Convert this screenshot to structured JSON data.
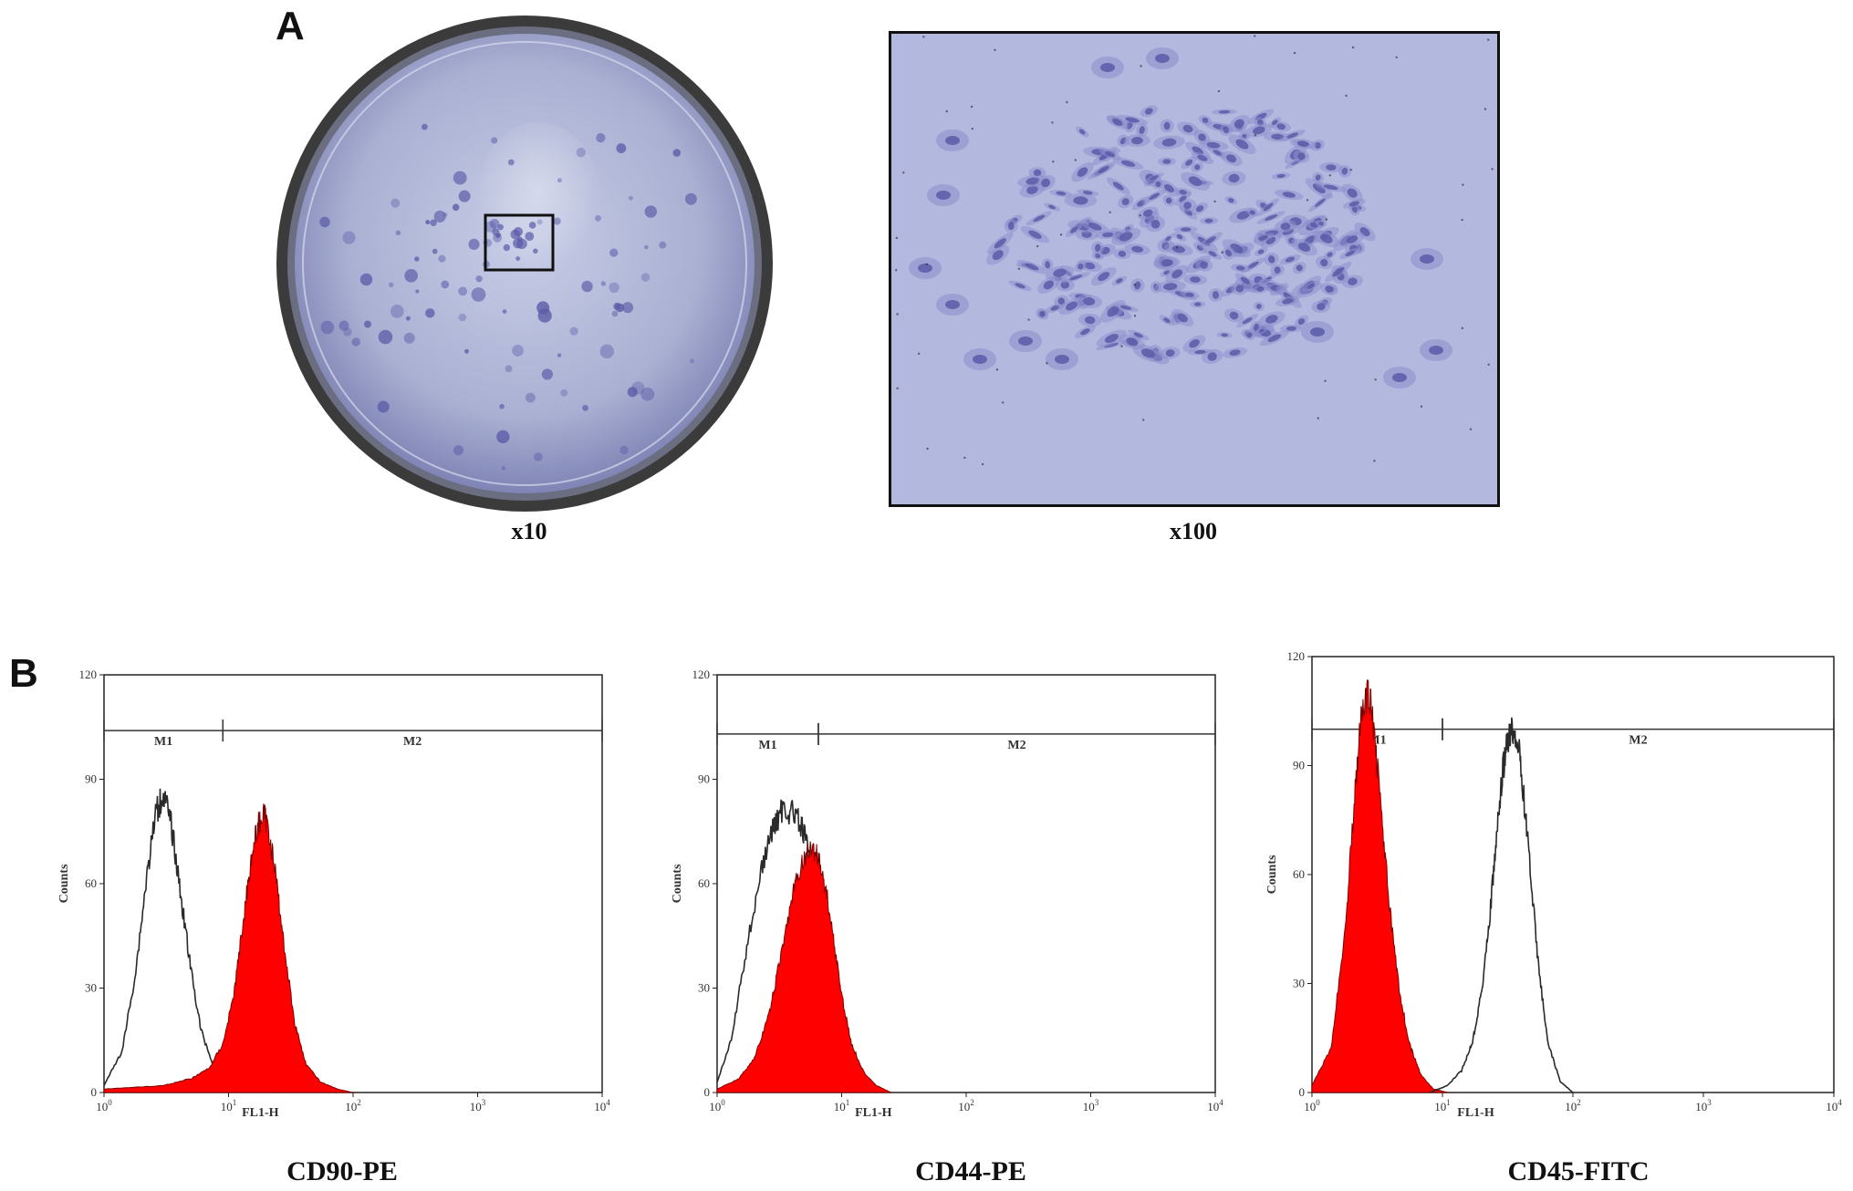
{
  "panel_a": {
    "letter": "A",
    "dish_caption": "x10",
    "micro_caption": "x100",
    "colors": {
      "stain": "#5b5ba8",
      "background": "#b7bbe0",
      "dish_rim": "#3d3d3d"
    }
  },
  "panel_b": {
    "letter": "B",
    "colors": {
      "stained": "#ff0000",
      "control_line": "#2a2a2a"
    }
  },
  "chart_data": [
    {
      "type": "area",
      "caption": "CD90-PE",
      "ylabel": "Counts",
      "xlabel": "FL1-H",
      "x_scale": "log",
      "xlim": [
        1,
        10000
      ],
      "ylim": [
        0,
        120
      ],
      "y_ticks": [
        "0",
        "30",
        "60",
        "90",
        "120"
      ],
      "x_ticks": [
        {
          "base": "10",
          "exp": "0"
        },
        {
          "base": "10",
          "exp": "1"
        },
        {
          "base": "10",
          "exp": "2"
        },
        {
          "base": "10",
          "exp": "3"
        },
        {
          "base": "10",
          "exp": "4"
        }
      ],
      "markers": [
        {
          "label": "M1",
          "from": 1,
          "to": 9
        },
        {
          "label": "M2",
          "from": 9,
          "to": 10000
        }
      ],
      "markers_y": 104,
      "series": [
        {
          "role": "control",
          "style": "outline",
          "x": [
            1,
            1.4,
            1.8,
            2.2,
            2.6,
            3.0,
            3.5,
            4.2,
            5,
            6,
            7.5,
            9,
            12,
            16,
            25
          ],
          "y": [
            2,
            12,
            35,
            62,
            80,
            86,
            76,
            55,
            35,
            18,
            8,
            4,
            2,
            1,
            0
          ]
        },
        {
          "role": "stained",
          "style": "filled",
          "x": [
            1,
            3,
            5,
            7,
            9,
            11,
            13,
            15,
            17,
            19,
            21,
            24,
            28,
            34,
            42,
            55,
            75,
            100
          ],
          "y": [
            1,
            2,
            4,
            7,
            14,
            28,
            48,
            66,
            76,
            80,
            76,
            62,
            42,
            20,
            8,
            3,
            1,
            0
          ]
        }
      ]
    },
    {
      "type": "area",
      "caption": "CD44-PE",
      "ylabel": "Counts",
      "xlabel": "FL1-H",
      "x_scale": "log",
      "xlim": [
        1,
        10000
      ],
      "ylim": [
        0,
        120
      ],
      "y_ticks": [
        "0",
        "30",
        "60",
        "90",
        "120"
      ],
      "x_ticks": [
        {
          "base": "10",
          "exp": "0"
        },
        {
          "base": "10",
          "exp": "1"
        },
        {
          "base": "10",
          "exp": "2"
        },
        {
          "base": "10",
          "exp": "3"
        },
        {
          "base": "10",
          "exp": "4"
        }
      ],
      "markers": [
        {
          "label": "M1",
          "from": 1,
          "to": 6.5
        },
        {
          "label": "M2",
          "from": 6.5,
          "to": 10000
        }
      ],
      "markers_y": 103,
      "series": [
        {
          "role": "control",
          "style": "outline",
          "x": [
            1,
            1.3,
            1.7,
            2.2,
            2.8,
            3.4,
            4.2,
            5,
            6,
            7.2,
            8.5,
            10,
            12,
            15,
            20
          ],
          "y": [
            3,
            15,
            40,
            62,
            76,
            82,
            80,
            74,
            62,
            45,
            28,
            14,
            6,
            2,
            0
          ]
        },
        {
          "role": "stained",
          "style": "filled",
          "x": [
            1,
            1.5,
            2,
            2.6,
            3.2,
            4,
            4.8,
            5.6,
            6.5,
            7.5,
            8.8,
            10,
            12,
            15,
            19,
            25
          ],
          "y": [
            1,
            4,
            10,
            22,
            38,
            56,
            66,
            70,
            68,
            58,
            42,
            28,
            14,
            6,
            2,
            0
          ]
        }
      ]
    },
    {
      "type": "area",
      "caption": "CD45-FITC",
      "ylabel": "Counts",
      "xlabel": "FL1-H",
      "x_scale": "log",
      "xlim": [
        1,
        10000
      ],
      "ylim": [
        0,
        120
      ],
      "y_ticks": [
        "0",
        "30",
        "60",
        "90",
        "120"
      ],
      "x_ticks": [
        {
          "base": "10",
          "exp": "0"
        },
        {
          "base": "10",
          "exp": "1"
        },
        {
          "base": "10",
          "exp": "2"
        },
        {
          "base": "10",
          "exp": "3"
        },
        {
          "base": "10",
          "exp": "4"
        }
      ],
      "markers": [
        {
          "label": "M1",
          "from": 1,
          "to": 10
        },
        {
          "label": "M2",
          "from": 10,
          "to": 10000
        }
      ],
      "markers_y": 100,
      "series": [
        {
          "role": "stained",
          "style": "filled",
          "x": [
            1,
            1.4,
            1.8,
            2.1,
            2.4,
            2.7,
            3.0,
            3.4,
            3.9,
            4.6,
            5.5,
            6.8,
            8.5,
            11
          ],
          "y": [
            2,
            12,
            45,
            80,
            104,
            110,
            100,
            78,
            52,
            30,
            14,
            5,
            1,
            0
          ]
        },
        {
          "role": "control",
          "style": "outline",
          "x": [
            8,
            11,
            14,
            17,
            20,
            23,
            26,
            29,
            32,
            36,
            40,
            46,
            54,
            64,
            80,
            100
          ],
          "y": [
            0,
            2,
            6,
            14,
            28,
            48,
            70,
            88,
            98,
            100,
            90,
            66,
            36,
            14,
            3,
            0
          ]
        }
      ]
    }
  ]
}
